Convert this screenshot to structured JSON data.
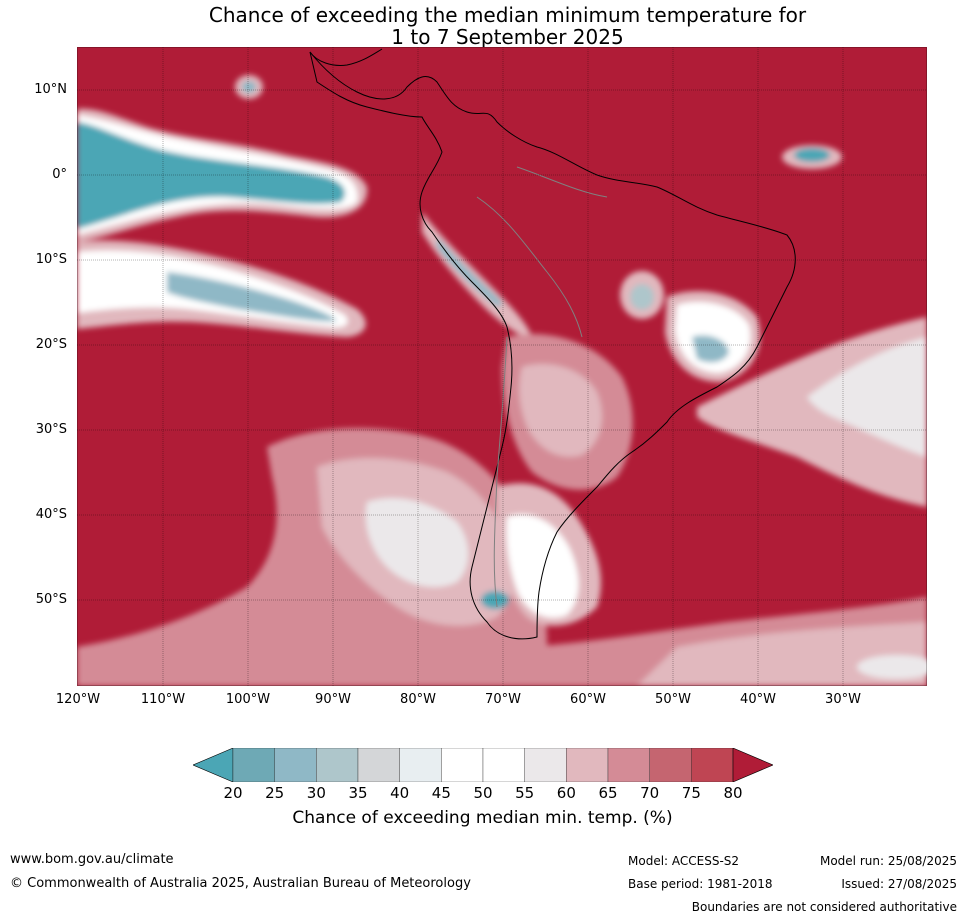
{
  "title": {
    "line1": "Chance of exceeding the median minimum temperature for",
    "line2": "1 to 7 September 2025"
  },
  "map": {
    "latitude_labels": [
      "10°N",
      "0°",
      "10°S",
      "20°S",
      "30°S",
      "40°S",
      "50°S"
    ],
    "longitude_labels": [
      "120°W",
      "110°W",
      "100°W",
      "90°W",
      "80°W",
      "70°W",
      "60°W",
      "50°W",
      "40°W",
      "30°W"
    ],
    "region": "South America and surrounding oceans",
    "dominant_color": "#b01c37",
    "colors": {
      "c20": "#4ba6b5",
      "c25": "#6ea9b5",
      "c30": "#8fb8c6",
      "c35": "#aec6cb",
      "c40": "#d4d6d8",
      "c45": "#e8eef1",
      "c50": "#ffffff",
      "c60": "#ebe8ea",
      "c65": "#e1b8be",
      "c70": "#d48b96",
      "c75": "#c56570",
      "c80": "#bf4553",
      "c85": "#b01c37"
    }
  },
  "colorbar": {
    "tick_labels": [
      "20",
      "25",
      "30",
      "35",
      "40",
      "45",
      "50",
      "55",
      "60",
      "65",
      "70",
      "75",
      "80"
    ],
    "segment_colors": [
      "#6ea9b5",
      "#8fb8c6",
      "#aec6cb",
      "#d4d6d8",
      "#e8eef1",
      "#ffffff",
      "#ffffff",
      "#ebe8ea",
      "#e1b8be",
      "#d48b96",
      "#c56570",
      "#bf4553"
    ],
    "low_extend_color": "#4ba6b5",
    "high_extend_color": "#b01c37",
    "label": "Chance of exceeding median min. temp. (%)"
  },
  "footer": {
    "website": "www.bom.gov.au/climate",
    "copyright": "© Commonwealth of Australia 2025, Australian Bureau of Meteorology",
    "model": "Model: ACCESS-S2",
    "base_period": "Base period: 1981-2018",
    "model_run": "Model run: 25/08/2025",
    "issued": "Issued: 27/08/2025",
    "disclaimer": "Boundaries are not considered authoritative"
  }
}
